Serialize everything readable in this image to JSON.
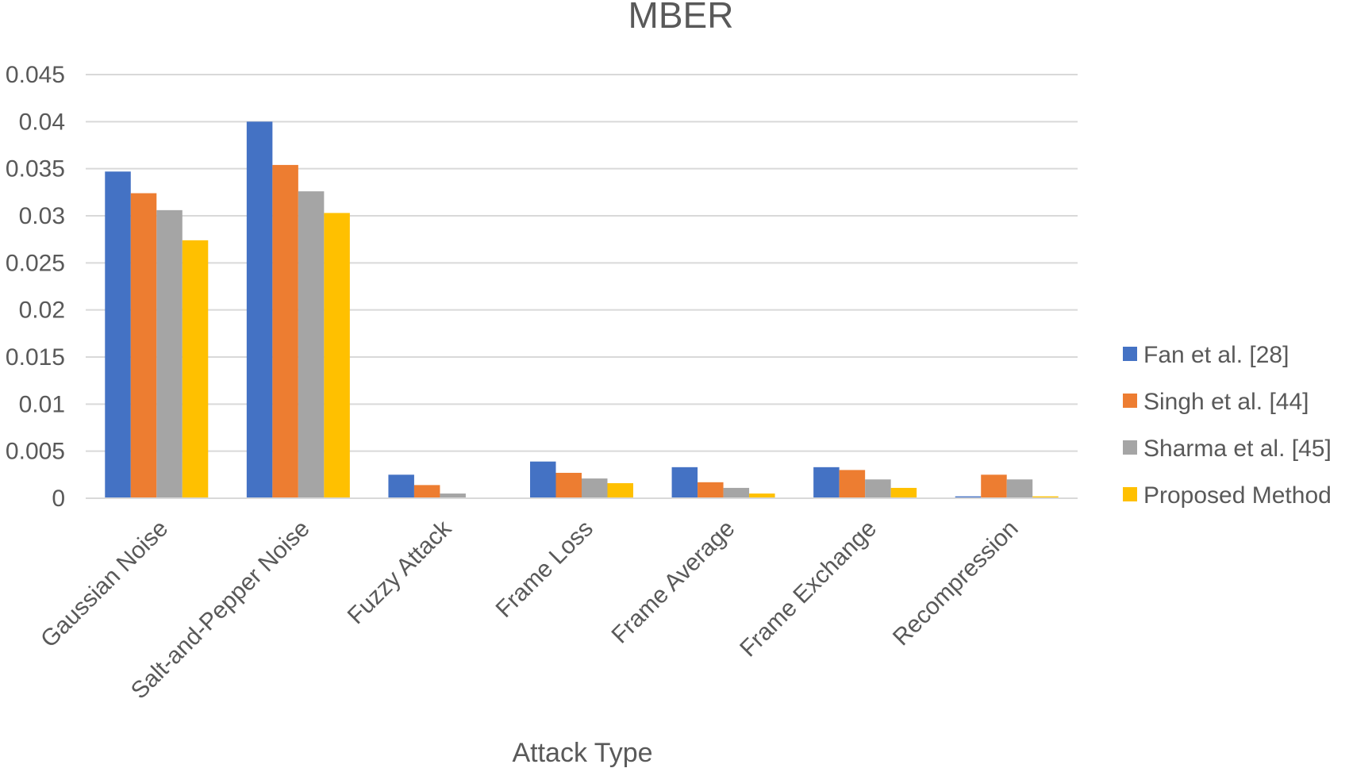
{
  "chart_data": {
    "type": "bar",
    "title": "MBER",
    "xlabel": "Attack Type",
    "ylabel": "",
    "ylim": [
      0,
      0.045
    ],
    "yticks": [
      0,
      0.005,
      0.01,
      0.015,
      0.02,
      0.025,
      0.03,
      0.035,
      0.04,
      0.045
    ],
    "ytick_labels": [
      "0",
      "0.005",
      "0.01",
      "0.015",
      "0.02",
      "0.025",
      "0.03",
      "0.035",
      "0.04",
      "0.045"
    ],
    "grid": true,
    "legend_position": "right",
    "categories": [
      "Gaussian Noise",
      "Salt-and-Pepper Noise",
      "Fuzzy Attack",
      "Frame Loss",
      "Frame Average",
      "Frame Exchange",
      "Recompression"
    ],
    "series": [
      {
        "name": "Fan et al. [28]",
        "color": "#4472c4",
        "values": [
          0.0347,
          0.04,
          0.0025,
          0.0039,
          0.0033,
          0.0033,
          0.0002
        ]
      },
      {
        "name": "Singh et al. [44]",
        "color": "#ed7d31",
        "values": [
          0.0324,
          0.0354,
          0.0014,
          0.0027,
          0.0017,
          0.003,
          0.0025
        ]
      },
      {
        "name": "Sharma et al. [45]",
        "color": "#a5a5a5",
        "values": [
          0.0306,
          0.0326,
          0.0005,
          0.0021,
          0.0011,
          0.002,
          0.002
        ]
      },
      {
        "name": "Proposed Method",
        "color": "#ffc000",
        "values": [
          0.0274,
          0.0303,
          0.0,
          0.0016,
          0.0005,
          0.0011,
          0.0002
        ]
      }
    ]
  }
}
